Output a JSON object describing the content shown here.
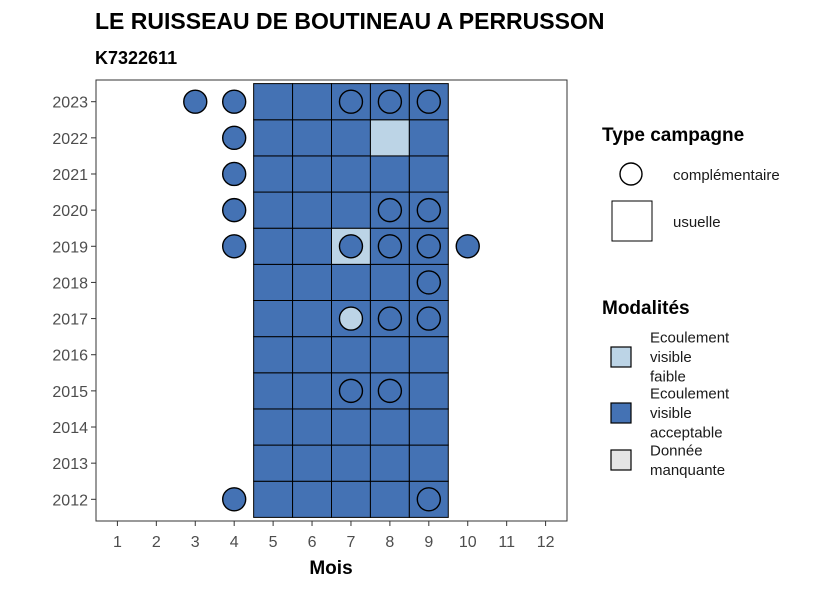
{
  "chart_data": {
    "type": "heatmap",
    "title": "LE RUISSEAU DE BOUTINEAU A PERRUSSON",
    "subtitle": "K7322611",
    "xlabel": "Mois",
    "ylabel": "",
    "x_categories": [
      "1",
      "2",
      "3",
      "4",
      "5",
      "6",
      "7",
      "8",
      "9",
      "10",
      "11",
      "12"
    ],
    "y_categories": [
      "2012",
      "2013",
      "2014",
      "2015",
      "2016",
      "2017",
      "2018",
      "2019",
      "2020",
      "2021",
      "2022",
      "2023"
    ],
    "legend_type_title": "Type campagne",
    "legend_type_entries": [
      {
        "key": "complementaire",
        "label": "complémentaire",
        "shape": "circle"
      },
      {
        "key": "usuelle",
        "label": "usuelle",
        "shape": "square"
      }
    ],
    "legend_modalites_title": "Modalités",
    "legend_modalites_entries": [
      {
        "key": "faible",
        "label_lines": [
          "Ecoulement",
          "visible",
          "faible"
        ],
        "color": "#bcd4e6"
      },
      {
        "key": "acceptable",
        "label_lines": [
          "Ecoulement",
          "visible",
          "acceptable"
        ],
        "color": "#4472b4"
      },
      {
        "key": "manquante",
        "label_lines": [
          "Donnée",
          "manquante"
        ],
        "color": "#e5e5e5"
      }
    ],
    "cells": [
      {
        "month": 5,
        "year": 2012,
        "type": "usuelle",
        "modalite": "acceptable"
      },
      {
        "month": 6,
        "year": 2012,
        "type": "usuelle",
        "modalite": "acceptable"
      },
      {
        "month": 7,
        "year": 2012,
        "type": "usuelle",
        "modalite": "acceptable"
      },
      {
        "month": 8,
        "year": 2012,
        "type": "usuelle",
        "modalite": "acceptable"
      },
      {
        "month": 9,
        "year": 2012,
        "type": "usuelle",
        "modalite": "acceptable"
      },
      {
        "month": 5,
        "year": 2013,
        "type": "usuelle",
        "modalite": "acceptable"
      },
      {
        "month": 6,
        "year": 2013,
        "type": "usuelle",
        "modalite": "acceptable"
      },
      {
        "month": 7,
        "year": 2013,
        "type": "usuelle",
        "modalite": "acceptable"
      },
      {
        "month": 8,
        "year": 2013,
        "type": "usuelle",
        "modalite": "acceptable"
      },
      {
        "month": 9,
        "year": 2013,
        "type": "usuelle",
        "modalite": "acceptable"
      },
      {
        "month": 5,
        "year": 2014,
        "type": "usuelle",
        "modalite": "acceptable"
      },
      {
        "month": 6,
        "year": 2014,
        "type": "usuelle",
        "modalite": "acceptable"
      },
      {
        "month": 7,
        "year": 2014,
        "type": "usuelle",
        "modalite": "acceptable"
      },
      {
        "month": 8,
        "year": 2014,
        "type": "usuelle",
        "modalite": "acceptable"
      },
      {
        "month": 9,
        "year": 2014,
        "type": "usuelle",
        "modalite": "acceptable"
      },
      {
        "month": 5,
        "year": 2015,
        "type": "usuelle",
        "modalite": "acceptable"
      },
      {
        "month": 6,
        "year": 2015,
        "type": "usuelle",
        "modalite": "acceptable"
      },
      {
        "month": 7,
        "year": 2015,
        "type": "usuelle",
        "modalite": "acceptable"
      },
      {
        "month": 8,
        "year": 2015,
        "type": "usuelle",
        "modalite": "acceptable"
      },
      {
        "month": 9,
        "year": 2015,
        "type": "usuelle",
        "modalite": "acceptable"
      },
      {
        "month": 5,
        "year": 2016,
        "type": "usuelle",
        "modalite": "acceptable"
      },
      {
        "month": 6,
        "year": 2016,
        "type": "usuelle",
        "modalite": "acceptable"
      },
      {
        "month": 7,
        "year": 2016,
        "type": "usuelle",
        "modalite": "acceptable"
      },
      {
        "month": 8,
        "year": 2016,
        "type": "usuelle",
        "modalite": "acceptable"
      },
      {
        "month": 9,
        "year": 2016,
        "type": "usuelle",
        "modalite": "acceptable"
      },
      {
        "month": 5,
        "year": 2017,
        "type": "usuelle",
        "modalite": "acceptable"
      },
      {
        "month": 6,
        "year": 2017,
        "type": "usuelle",
        "modalite": "acceptable"
      },
      {
        "month": 7,
        "year": 2017,
        "type": "usuelle",
        "modalite": "acceptable"
      },
      {
        "month": 8,
        "year": 2017,
        "type": "usuelle",
        "modalite": "acceptable"
      },
      {
        "month": 9,
        "year": 2017,
        "type": "usuelle",
        "modalite": "acceptable"
      },
      {
        "month": 5,
        "year": 2018,
        "type": "usuelle",
        "modalite": "acceptable"
      },
      {
        "month": 6,
        "year": 2018,
        "type": "usuelle",
        "modalite": "acceptable"
      },
      {
        "month": 7,
        "year": 2018,
        "type": "usuelle",
        "modalite": "acceptable"
      },
      {
        "month": 8,
        "year": 2018,
        "type": "usuelle",
        "modalite": "acceptable"
      },
      {
        "month": 9,
        "year": 2018,
        "type": "usuelle",
        "modalite": "acceptable"
      },
      {
        "month": 5,
        "year": 2019,
        "type": "usuelle",
        "modalite": "acceptable"
      },
      {
        "month": 6,
        "year": 2019,
        "type": "usuelle",
        "modalite": "acceptable"
      },
      {
        "month": 7,
        "year": 2019,
        "type": "usuelle",
        "modalite": "faible"
      },
      {
        "month": 8,
        "year": 2019,
        "type": "usuelle",
        "modalite": "acceptable"
      },
      {
        "month": 9,
        "year": 2019,
        "type": "usuelle",
        "modalite": "acceptable"
      },
      {
        "month": 5,
        "year": 2020,
        "type": "usuelle",
        "modalite": "acceptable"
      },
      {
        "month": 6,
        "year": 2020,
        "type": "usuelle",
        "modalite": "acceptable"
      },
      {
        "month": 7,
        "year": 2020,
        "type": "usuelle",
        "modalite": "acceptable"
      },
      {
        "month": 8,
        "year": 2020,
        "type": "usuelle",
        "modalite": "acceptable"
      },
      {
        "month": 9,
        "year": 2020,
        "type": "usuelle",
        "modalite": "acceptable"
      },
      {
        "month": 5,
        "year": 2021,
        "type": "usuelle",
        "modalite": "acceptable"
      },
      {
        "month": 6,
        "year": 2021,
        "type": "usuelle",
        "modalite": "acceptable"
      },
      {
        "month": 7,
        "year": 2021,
        "type": "usuelle",
        "modalite": "acceptable"
      },
      {
        "month": 8,
        "year": 2021,
        "type": "usuelle",
        "modalite": "acceptable"
      },
      {
        "month": 9,
        "year": 2021,
        "type": "usuelle",
        "modalite": "acceptable"
      },
      {
        "month": 5,
        "year": 2022,
        "type": "usuelle",
        "modalite": "acceptable"
      },
      {
        "month": 6,
        "year": 2022,
        "type": "usuelle",
        "modalite": "acceptable"
      },
      {
        "month": 7,
        "year": 2022,
        "type": "usuelle",
        "modalite": "acceptable"
      },
      {
        "month": 8,
        "year": 2022,
        "type": "usuelle",
        "modalite": "faible"
      },
      {
        "month": 9,
        "year": 2022,
        "type": "usuelle",
        "modalite": "acceptable"
      },
      {
        "month": 5,
        "year": 2023,
        "type": "usuelle",
        "modalite": "acceptable"
      },
      {
        "month": 6,
        "year": 2023,
        "type": "usuelle",
        "modalite": "acceptable"
      },
      {
        "month": 7,
        "year": 2023,
        "type": "usuelle",
        "modalite": "acceptable"
      },
      {
        "month": 8,
        "year": 2023,
        "type": "usuelle",
        "modalite": "acceptable"
      },
      {
        "month": 9,
        "year": 2023,
        "type": "usuelle",
        "modalite": "acceptable"
      },
      {
        "month": 3,
        "year": 2023,
        "type": "complementaire",
        "modalite": "acceptable"
      },
      {
        "month": 4,
        "year": 2023,
        "type": "complementaire",
        "modalite": "acceptable"
      },
      {
        "month": 7,
        "year": 2023,
        "type": "complementaire",
        "modalite": "acceptable"
      },
      {
        "month": 8,
        "year": 2023,
        "type": "complementaire",
        "modalite": "acceptable"
      },
      {
        "month": 9,
        "year": 2023,
        "type": "complementaire",
        "modalite": "acceptable"
      },
      {
        "month": 4,
        "year": 2022,
        "type": "complementaire",
        "modalite": "acceptable"
      },
      {
        "month": 4,
        "year": 2021,
        "type": "complementaire",
        "modalite": "acceptable"
      },
      {
        "month": 4,
        "year": 2020,
        "type": "complementaire",
        "modalite": "acceptable"
      },
      {
        "month": 8,
        "year": 2020,
        "type": "complementaire",
        "modalite": "acceptable"
      },
      {
        "month": 9,
        "year": 2020,
        "type": "complementaire",
        "modalite": "acceptable"
      },
      {
        "month": 4,
        "year": 2019,
        "type": "complementaire",
        "modalite": "acceptable"
      },
      {
        "month": 7,
        "year": 2019,
        "type": "complementaire",
        "modalite": "acceptable"
      },
      {
        "month": 8,
        "year": 2019,
        "type": "complementaire",
        "modalite": "acceptable"
      },
      {
        "month": 9,
        "year": 2019,
        "type": "complementaire",
        "modalite": "acceptable"
      },
      {
        "month": 10,
        "year": 2019,
        "type": "complementaire",
        "modalite": "acceptable"
      },
      {
        "month": 9,
        "year": 2018,
        "type": "complementaire",
        "modalite": "acceptable"
      },
      {
        "month": 7,
        "year": 2017,
        "type": "complementaire",
        "modalite": "faible"
      },
      {
        "month": 8,
        "year": 2017,
        "type": "complementaire",
        "modalite": "acceptable"
      },
      {
        "month": 9,
        "year": 2017,
        "type": "complementaire",
        "modalite": "acceptable"
      },
      {
        "month": 7,
        "year": 2015,
        "type": "complementaire",
        "modalite": "acceptable"
      },
      {
        "month": 8,
        "year": 2015,
        "type": "complementaire",
        "modalite": "acceptable"
      },
      {
        "month": 4,
        "year": 2012,
        "type": "complementaire",
        "modalite": "acceptable"
      },
      {
        "month": 9,
        "year": 2012,
        "type": "complementaire",
        "modalite": "acceptable"
      }
    ]
  }
}
